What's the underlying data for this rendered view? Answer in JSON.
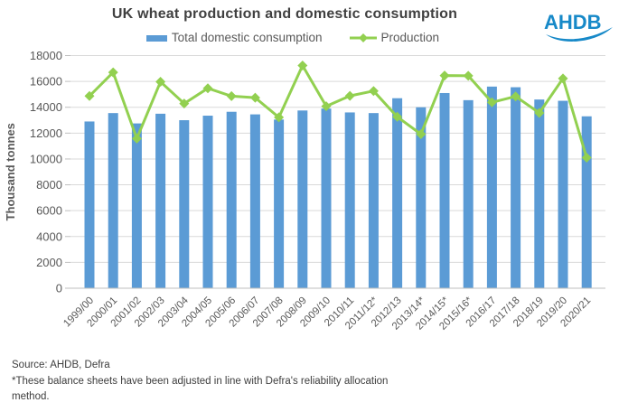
{
  "title": "UK wheat production and domestic consumption",
  "logo": {
    "text": "AHDB",
    "color": "#1789C8"
  },
  "legend": [
    {
      "label": "Total domestic consumption",
      "swatch": "bar",
      "color": "#5B9BD5"
    },
    {
      "label": "Production",
      "swatch": "line-diamond",
      "color": "#92D050"
    }
  ],
  "footer": {
    "source": "Source: AHDB, Defra",
    "note": "*These balance sheets have been adjusted in line with Defra's reliability allocation method."
  },
  "colors": {
    "bar": "#5B9BD5",
    "line": "#92D050",
    "gridline": "#D9D9D9",
    "axis": "#BFBFBF",
    "tick_text": "#595959",
    "title_text": "#404040",
    "logo_blue": "#1789C8"
  },
  "chart_data": {
    "type": "bar",
    "title": "UK wheat production and domestic consumption",
    "ylabel": "Thousand tonnes",
    "xlabel": "",
    "ylim": [
      0,
      18000
    ],
    "ytick_step": 2000,
    "grid": "horizontal",
    "legend_position": "top",
    "categories": [
      "1999/00",
      "2000/01",
      "2001/02",
      "2002/03",
      "2003/04",
      "2004/05",
      "2005/06",
      "2006/07",
      "2007/08",
      "2008/09",
      "2009/10",
      "2010/11",
      "2011/12*",
      "2012/13",
      "2013/14*",
      "2014/15*",
      "2015/16*",
      "2016/17",
      "2017/18",
      "2018/19",
      "2019/20",
      "2020/21"
    ],
    "series": [
      {
        "name": "Total domestic consumption",
        "render": "bar",
        "color": "#5B9BD5",
        "values": [
          12900,
          13550,
          12750,
          13500,
          13000,
          13350,
          13650,
          13450,
          13050,
          13750,
          13900,
          13600,
          13550,
          14700,
          14000,
          15100,
          14550,
          15600,
          15550,
          14600,
          14500,
          13300
        ]
      },
      {
        "name": "Production",
        "render": "line",
        "marker": "diamond",
        "color": "#92D050",
        "values": [
          14870,
          16700,
          11580,
          15970,
          14290,
          15470,
          14860,
          14740,
          13220,
          17230,
          14080,
          14880,
          15260,
          13260,
          11920,
          16450,
          16440,
          14380,
          14840,
          13560,
          16230,
          10100
        ]
      }
    ]
  }
}
